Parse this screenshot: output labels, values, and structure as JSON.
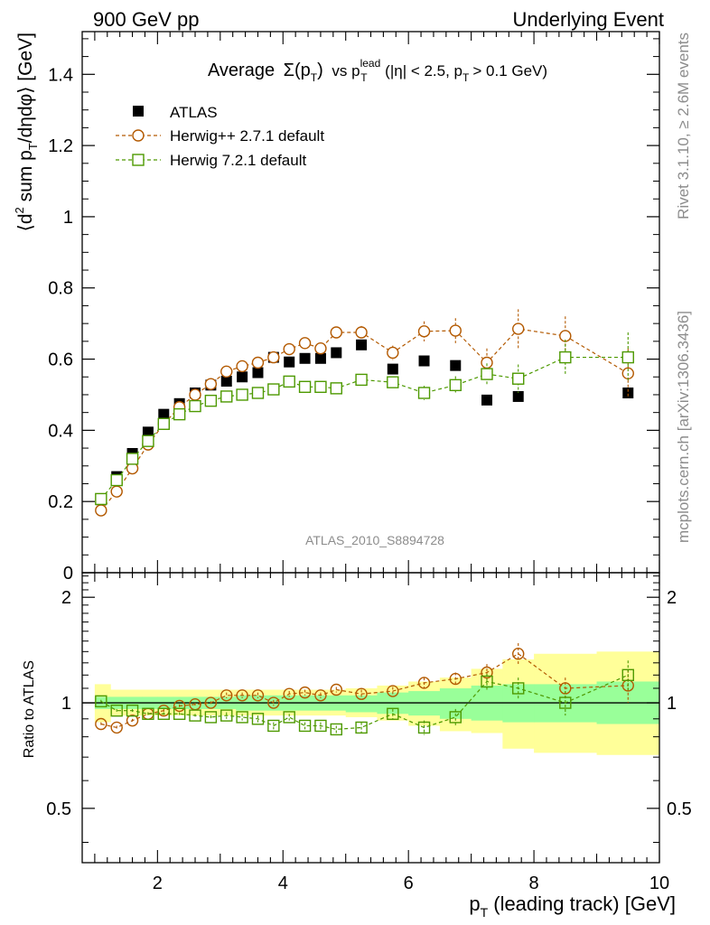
{
  "header": {
    "left": "900 GeV pp",
    "right": "Underlying Event"
  },
  "side_labels": {
    "rivet": "Rivet 3.1.10, ≥ 2.6M events",
    "mcplots": "mcplots.cern.ch [arXiv:1306.3436]"
  },
  "chart_data": [
    {
      "type": "scatter",
      "title": {
        "main": "Average",
        "sigma": "Σ(p",
        "sigma_sub": "T",
        "sigma_close": ")",
        "vs": "vs p",
        "sup": "lead",
        "sub": "T",
        "cuts_a": "(|η| < 2.5, p",
        "cuts_sub": "T",
        "cuts_b": "> 0.1 GeV)"
      },
      "ylabel": "⟨d² sum p_T/dηdφ⟩ [GeV]",
      "ylabel_parts": {
        "a": "⟨d",
        "sup": "2",
        "b": " sum p",
        "sub": "T",
        "c": "/dηdφ⟩ [GeV]"
      },
      "watermark": "ATLAS_2010_S8894728",
      "xlim": [
        0.8,
        10.0
      ],
      "ylim": [
        0,
        1.52
      ],
      "yticks": [
        0,
        0.2,
        0.4,
        0.6,
        0.8,
        1,
        1.2,
        1.4
      ],
      "ytick_labels": [
        "0",
        "0.2",
        "0.4",
        "0.6",
        "0.8",
        "1",
        "1.2",
        "1.4"
      ],
      "legend_position": "top-left",
      "series": [
        {
          "name": "ATLAS",
          "color": "#000000",
          "marker": "filled-square",
          "x": [
            1.1,
            1.35,
            1.6,
            1.85,
            2.1,
            2.35,
            2.6,
            2.85,
            3.1,
            3.35,
            3.6,
            3.85,
            4.1,
            4.35,
            4.6,
            4.85,
            5.25,
            5.75,
            6.25,
            6.75,
            7.25,
            7.75,
            8.5,
            9.5
          ],
          "y": [
            0.205,
            0.27,
            0.335,
            0.395,
            0.445,
            0.475,
            0.505,
            0.527,
            0.538,
            0.55,
            0.562,
            0.605,
            0.592,
            0.602,
            0.602,
            0.618,
            0.64,
            0.572,
            0.595,
            0.582,
            0.485,
            0.495,
            0.605,
            0.505
          ]
        },
        {
          "name": "Herwig++ 2.7.1 default",
          "color": "#b35900",
          "marker": "open-circle",
          "x": [
            1.1,
            1.35,
            1.6,
            1.85,
            2.1,
            2.35,
            2.6,
            2.85,
            3.1,
            3.35,
            3.6,
            3.85,
            4.1,
            4.35,
            4.6,
            4.85,
            5.25,
            5.75,
            6.25,
            6.75,
            7.25,
            7.75,
            8.5,
            9.5
          ],
          "y": [
            0.175,
            0.228,
            0.293,
            0.36,
            0.418,
            0.465,
            0.5,
            0.53,
            0.565,
            0.58,
            0.59,
            0.605,
            0.628,
            0.645,
            0.63,
            0.675,
            0.675,
            0.618,
            0.678,
            0.68,
            0.59,
            0.685,
            0.665,
            0.56
          ],
          "err": [
            0.005,
            0.006,
            0.006,
            0.007,
            0.007,
            0.008,
            0.008,
            0.008,
            0.01,
            0.01,
            0.01,
            0.01,
            0.012,
            0.012,
            0.013,
            0.015,
            0.018,
            0.02,
            0.028,
            0.035,
            0.04,
            0.055,
            0.055,
            0.07
          ]
        },
        {
          "name": "Herwig 7.2.1 default",
          "color": "#4d9900",
          "marker": "open-square",
          "x": [
            1.1,
            1.35,
            1.6,
            1.85,
            2.1,
            2.35,
            2.6,
            2.85,
            3.1,
            3.35,
            3.6,
            3.85,
            4.1,
            4.35,
            4.6,
            4.85,
            5.25,
            5.75,
            6.25,
            6.75,
            7.25,
            7.75,
            8.5,
            9.5
          ],
          "y": [
            0.207,
            0.26,
            0.32,
            0.37,
            0.418,
            0.445,
            0.468,
            0.483,
            0.495,
            0.5,
            0.505,
            0.515,
            0.537,
            0.522,
            0.522,
            0.518,
            0.542,
            0.535,
            0.505,
            0.527,
            0.558,
            0.545,
            0.605,
            0.605
          ],
          "err": [
            0.005,
            0.005,
            0.006,
            0.006,
            0.007,
            0.007,
            0.007,
            0.008,
            0.008,
            0.009,
            0.009,
            0.01,
            0.01,
            0.011,
            0.011,
            0.012,
            0.014,
            0.016,
            0.02,
            0.025,
            0.03,
            0.04,
            0.05,
            0.07
          ]
        }
      ]
    },
    {
      "type": "scatter",
      "ylabel": "Ratio to ATLAS",
      "xlabel": "p_T (leading track) [GeV]",
      "xlabel_parts": {
        "a": "p",
        "sub": "T",
        "b": " (leading track) [GeV]"
      },
      "xlim": [
        0.8,
        10.0
      ],
      "ylim": [
        0.35,
        2.35
      ],
      "y_scale": "log",
      "xticks": [
        2,
        4,
        6,
        8,
        10
      ],
      "xtick_labels": [
        "2",
        "4",
        "6",
        "8",
        "10"
      ],
      "yticks": [
        0.5,
        1,
        2
      ],
      "ytick_labels": [
        "0.5",
        "1",
        "2"
      ],
      "reference_line": 1,
      "bands": {
        "x_edges": [
          1.0,
          1.25,
          1.5,
          1.75,
          2.0,
          2.25,
          2.5,
          2.75,
          3.0,
          3.25,
          3.5,
          3.75,
          4.0,
          4.25,
          4.5,
          4.75,
          5.0,
          5.5,
          6.0,
          6.5,
          7.0,
          7.5,
          8.0,
          9.0,
          10.0
        ],
        "stat_sys_upper": [
          1.13,
          1.09,
          1.09,
          1.09,
          1.09,
          1.09,
          1.09,
          1.09,
          1.09,
          1.09,
          1.09,
          1.09,
          1.09,
          1.09,
          1.09,
          1.09,
          1.1,
          1.12,
          1.15,
          1.18,
          1.25,
          1.33,
          1.38,
          1.4
        ],
        "stat_sys_lower": [
          0.88,
          0.92,
          0.92,
          0.92,
          0.92,
          0.92,
          0.92,
          0.92,
          0.92,
          0.92,
          0.92,
          0.92,
          0.92,
          0.92,
          0.92,
          0.92,
          0.91,
          0.89,
          0.86,
          0.83,
          0.82,
          0.74,
          0.72,
          0.71
        ],
        "stat_upper": [
          1.04,
          1.04,
          1.04,
          1.04,
          1.04,
          1.04,
          1.04,
          1.04,
          1.04,
          1.05,
          1.05,
          1.05,
          1.05,
          1.05,
          1.05,
          1.05,
          1.05,
          1.07,
          1.08,
          1.1,
          1.12,
          1.13,
          1.13,
          1.15
        ],
        "stat_lower": [
          0.96,
          0.96,
          0.96,
          0.96,
          0.96,
          0.96,
          0.96,
          0.96,
          0.96,
          0.95,
          0.95,
          0.95,
          0.95,
          0.95,
          0.95,
          0.95,
          0.94,
          0.93,
          0.92,
          0.9,
          0.89,
          0.88,
          0.88,
          0.87
        ],
        "outer_color": "#ffff99",
        "inner_color": "#99ff99"
      },
      "series": [
        {
          "name": "Herwig++ 2.7.1 default",
          "color": "#b35900",
          "marker": "open-circle",
          "x": [
            1.1,
            1.35,
            1.6,
            1.85,
            2.1,
            2.35,
            2.6,
            2.85,
            3.1,
            3.35,
            3.6,
            3.85,
            4.1,
            4.35,
            4.6,
            4.85,
            5.25,
            5.75,
            6.25,
            6.75,
            7.25,
            7.75,
            8.5,
            9.5
          ],
          "y": [
            0.87,
            0.85,
            0.89,
            0.93,
            0.95,
            0.98,
            0.99,
            1.0,
            1.05,
            1.05,
            1.05,
            1.0,
            1.06,
            1.07,
            1.05,
            1.09,
            1.06,
            1.08,
            1.14,
            1.17,
            1.22,
            1.38,
            1.1,
            1.12
          ],
          "err": [
            0.01,
            0.01,
            0.01,
            0.01,
            0.01,
            0.01,
            0.01,
            0.01,
            0.02,
            0.02,
            0.02,
            0.02,
            0.02,
            0.02,
            0.02,
            0.02,
            0.03,
            0.03,
            0.04,
            0.05,
            0.07,
            0.1,
            0.08,
            0.12
          ]
        },
        {
          "name": "Herwig 7.2.1 default",
          "color": "#4d9900",
          "marker": "open-square",
          "x": [
            1.1,
            1.35,
            1.6,
            1.85,
            2.1,
            2.35,
            2.6,
            2.85,
            3.1,
            3.35,
            3.6,
            3.85,
            4.1,
            4.35,
            4.6,
            4.85,
            5.25,
            5.75,
            6.25,
            6.75,
            7.25,
            7.75,
            8.5,
            9.5
          ],
          "y": [
            1.01,
            0.95,
            0.95,
            0.93,
            0.93,
            0.93,
            0.92,
            0.91,
            0.92,
            0.91,
            0.9,
            0.86,
            0.91,
            0.86,
            0.86,
            0.84,
            0.85,
            0.93,
            0.85,
            0.91,
            1.15,
            1.1,
            1.0,
            1.2
          ],
          "err": [
            0.01,
            0.01,
            0.01,
            0.01,
            0.01,
            0.01,
            0.01,
            0.01,
            0.02,
            0.02,
            0.02,
            0.02,
            0.02,
            0.02,
            0.02,
            0.02,
            0.03,
            0.03,
            0.04,
            0.05,
            0.06,
            0.08,
            0.08,
            0.12
          ]
        }
      ]
    }
  ]
}
